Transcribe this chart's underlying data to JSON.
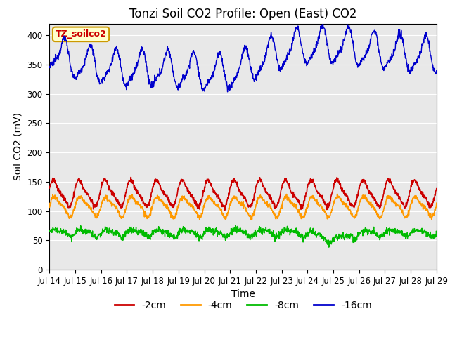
{
  "title": "Tonzi Soil CO2 Profile: Open (East) CO2",
  "ylabel": "Soil CO2 (mV)",
  "xlabel": "Time",
  "ylim": [
    0,
    420
  ],
  "yticks": [
    0,
    50,
    100,
    150,
    200,
    250,
    300,
    350,
    400
  ],
  "x_tick_labels": [
    "Jul 14",
    "Jul 15",
    "Jul 16",
    "Jul 17",
    "Jul 18",
    "Jul 19",
    "Jul 20",
    "Jul 21",
    "Jul 22",
    "Jul 23",
    "Jul 24",
    "Jul 25",
    "Jul 26",
    "Jul 27",
    "Jul 28",
    "Jul 29"
  ],
  "series": {
    "-2cm": {
      "color": "#cc0000"
    },
    "-4cm": {
      "color": "#ff9900"
    },
    "-8cm": {
      "color": "#00bb00"
    },
    "-16cm": {
      "color": "#0000cc"
    }
  },
  "legend_labels": [
    "-2cm",
    "-4cm",
    "-8cm",
    "-16cm"
  ],
  "legend_colors": [
    "#cc0000",
    "#ff9900",
    "#00bb00",
    "#0000cc"
  ],
  "annotation_text": "TZ_soilco2",
  "annotation_bg": "#ffffcc",
  "annotation_border": "#cc9900",
  "bg_color": "#e8e8e8",
  "title_fontsize": 12,
  "axis_label_fontsize": 10,
  "tick_fontsize": 8.5,
  "legend_fontsize": 10,
  "n_per_day": 96,
  "n_days": 15
}
